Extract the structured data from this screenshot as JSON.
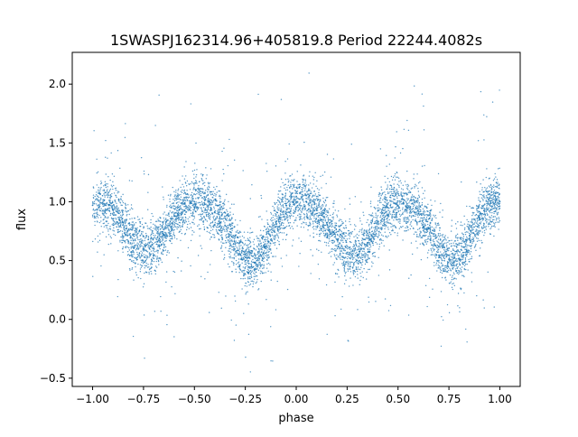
{
  "chart_data": {
    "type": "scatter",
    "title": "1SWASPJ162314.96+405819.8 Period 22244.4082s",
    "xlabel": "phase",
    "ylabel": "flux",
    "xlim": [
      -1.1,
      1.1
    ],
    "ylim": [
      -0.57,
      2.27
    ],
    "x_ticks": [
      -1.0,
      -0.75,
      -0.5,
      -0.25,
      0.0,
      0.25,
      0.5,
      0.75,
      1.0
    ],
    "x_tick_labels": [
      "−1.00",
      "−0.75",
      "−0.50",
      "−0.25",
      "0.00",
      "0.25",
      "0.50",
      "0.75",
      "1.00"
    ],
    "y_ticks": [
      -0.5,
      0.0,
      0.5,
      1.0,
      1.5,
      2.0
    ],
    "y_tick_labels": [
      "−0.5",
      "0.0",
      "0.5",
      "1.0",
      "1.5",
      "2.0"
    ],
    "grid": false,
    "marker_color": "#1f77b4",
    "series": [
      {
        "x": [
          -1.0,
          -0.95,
          -0.9,
          -0.85,
          -0.8,
          -0.75,
          -0.7,
          -0.65,
          -0.6,
          -0.55,
          -0.5,
          -0.45,
          -0.4,
          -0.35,
          -0.3,
          -0.25,
          -0.2,
          -0.15,
          -0.1,
          -0.05,
          0.0,
          0.05,
          0.1,
          0.15,
          0.2,
          0.25,
          0.3,
          0.35,
          0.4,
          0.45,
          0.5,
          0.55,
          0.6,
          0.65,
          0.7,
          0.75,
          0.8,
          0.85,
          0.9,
          0.95,
          1.0
        ],
        "y": [
          0.97,
          0.98,
          0.93,
          0.82,
          0.67,
          0.6,
          0.6,
          0.72,
          0.88,
          0.98,
          1.0,
          0.98,
          0.91,
          0.8,
          0.64,
          0.5,
          0.48,
          0.62,
          0.82,
          0.97,
          1.0,
          1.0,
          0.93,
          0.82,
          0.68,
          0.57,
          0.55,
          0.65,
          0.82,
          0.95,
          0.97,
          0.95,
          0.9,
          0.78,
          0.62,
          0.51,
          0.52,
          0.68,
          0.86,
          0.98,
          1.0
        ]
      }
    ]
  }
}
